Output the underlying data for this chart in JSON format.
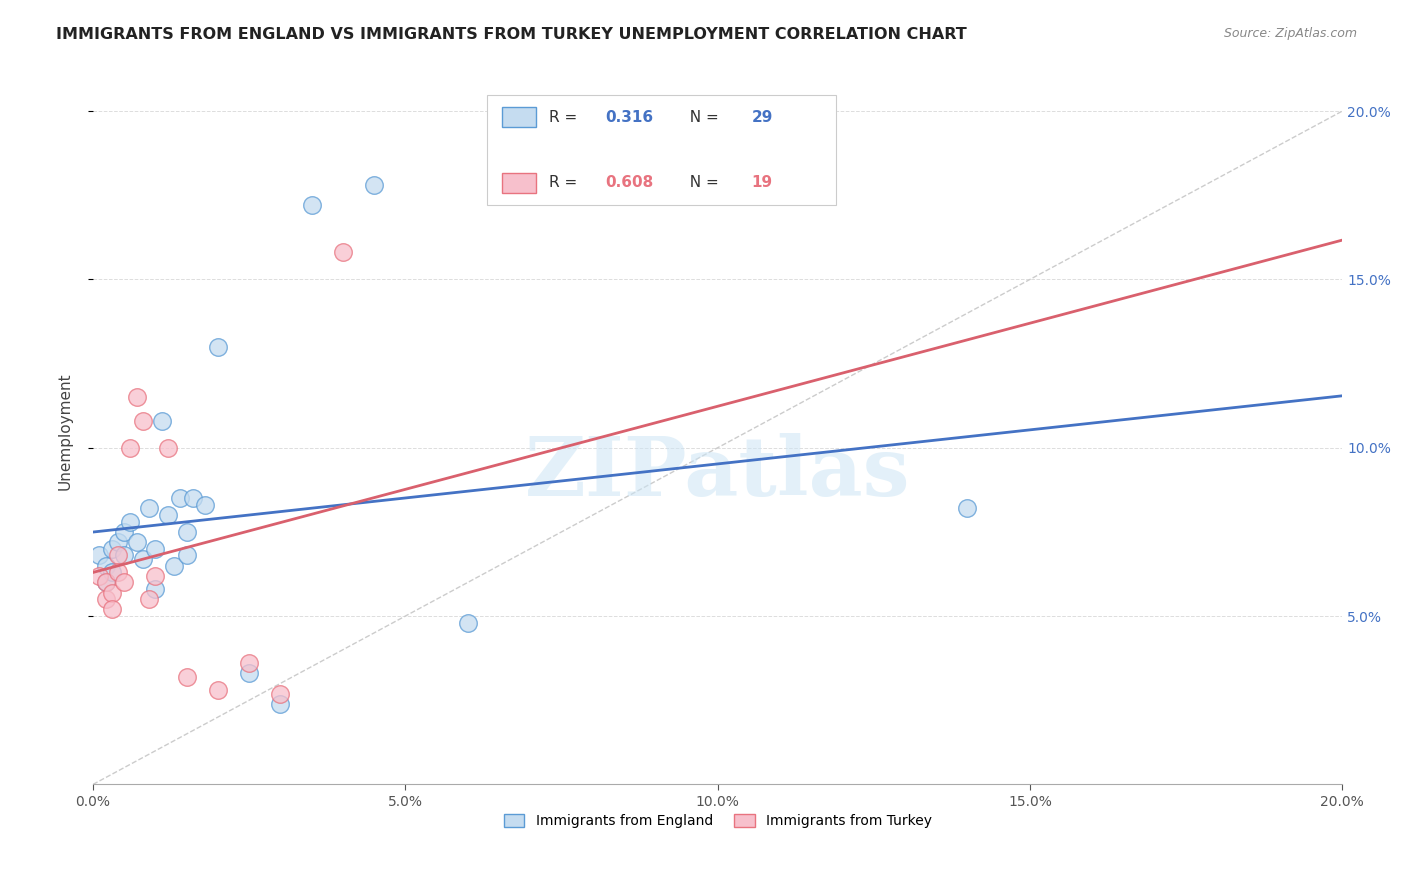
{
  "title": "IMMIGRANTS FROM ENGLAND VS IMMIGRANTS FROM TURKEY UNEMPLOYMENT CORRELATION CHART",
  "source": "Source: ZipAtlas.com",
  "ylabel": "Unemployment",
  "xlim": [
    0,
    0.2
  ],
  "ylim": [
    0,
    0.21
  ],
  "xticks": [
    0.0,
    0.05,
    0.1,
    0.15,
    0.2
  ],
  "xtick_labels": [
    "0.0%",
    "5.0%",
    "10.0%",
    "15.0%",
    "20.0%"
  ],
  "yticks": [
    0.05,
    0.1,
    0.15,
    0.2
  ],
  "ytick_labels": [
    "5.0%",
    "10.0%",
    "15.0%",
    "20.0%"
  ],
  "england_R": 0.316,
  "england_N": 29,
  "turkey_R": 0.608,
  "turkey_N": 19,
  "england_color": "#c5dcf0",
  "turkey_color": "#f7c0cc",
  "england_edge_color": "#5b9bd5",
  "turkey_edge_color": "#e8737f",
  "england_line_color": "#4472c4",
  "turkey_line_color": "#d9606d",
  "england_dots": [
    [
      0.001,
      0.068
    ],
    [
      0.002,
      0.065
    ],
    [
      0.002,
      0.06
    ],
    [
      0.003,
      0.07
    ],
    [
      0.003,
      0.063
    ],
    [
      0.004,
      0.072
    ],
    [
      0.005,
      0.075
    ],
    [
      0.005,
      0.068
    ],
    [
      0.006,
      0.078
    ],
    [
      0.007,
      0.072
    ],
    [
      0.008,
      0.067
    ],
    [
      0.009,
      0.082
    ],
    [
      0.01,
      0.07
    ],
    [
      0.01,
      0.058
    ],
    [
      0.011,
      0.108
    ],
    [
      0.012,
      0.08
    ],
    [
      0.013,
      0.065
    ],
    [
      0.014,
      0.085
    ],
    [
      0.015,
      0.068
    ],
    [
      0.015,
      0.075
    ],
    [
      0.016,
      0.085
    ],
    [
      0.018,
      0.083
    ],
    [
      0.02,
      0.13
    ],
    [
      0.025,
      0.033
    ],
    [
      0.03,
      0.024
    ],
    [
      0.035,
      0.172
    ],
    [
      0.045,
      0.178
    ],
    [
      0.06,
      0.048
    ],
    [
      0.14,
      0.082
    ]
  ],
  "turkey_dots": [
    [
      0.001,
      0.062
    ],
    [
      0.002,
      0.055
    ],
    [
      0.002,
      0.06
    ],
    [
      0.003,
      0.057
    ],
    [
      0.003,
      0.052
    ],
    [
      0.004,
      0.068
    ],
    [
      0.004,
      0.063
    ],
    [
      0.005,
      0.06
    ],
    [
      0.006,
      0.1
    ],
    [
      0.007,
      0.115
    ],
    [
      0.008,
      0.108
    ],
    [
      0.009,
      0.055
    ],
    [
      0.01,
      0.062
    ],
    [
      0.012,
      0.1
    ],
    [
      0.015,
      0.032
    ],
    [
      0.02,
      0.028
    ],
    [
      0.025,
      0.036
    ],
    [
      0.03,
      0.027
    ],
    [
      0.04,
      0.158
    ]
  ],
  "england_trend": [
    0.06,
    0.13
  ],
  "turkey_trend_start": 0.035,
  "turkey_trend_end": 0.13,
  "background_color": "#ffffff",
  "watermark_text": "ZIPatlas"
}
